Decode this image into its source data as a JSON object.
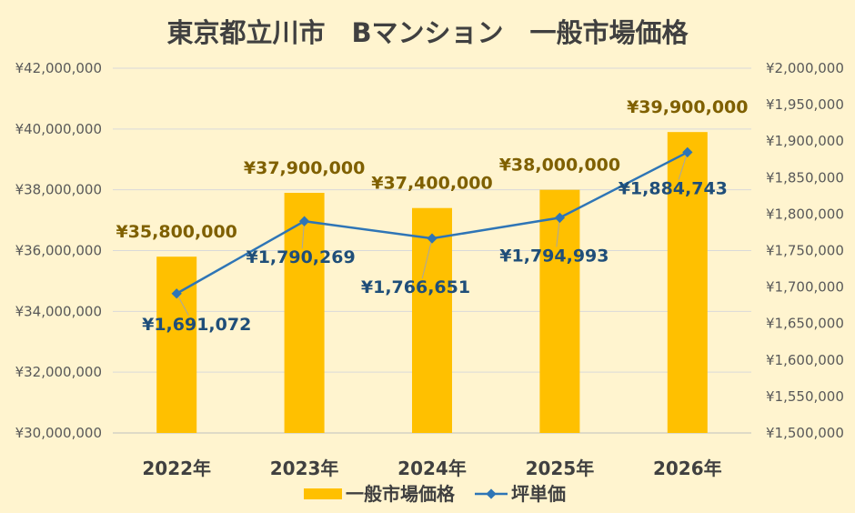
{
  "chart_data": {
    "type": "bar",
    "title": "東京都立川市　Bマンション　一般市場価格",
    "categories": [
      "2022年",
      "2023年",
      "2024年",
      "2025年",
      "2026年"
    ],
    "ylim": [
      30000000,
      42000000
    ],
    "y_ticks": [
      "¥30,000,000",
      "¥32,000,000",
      "¥34,000,000",
      "¥36,000,000",
      "¥38,000,000",
      "¥40,000,000",
      "¥42,000,000"
    ],
    "y2lim": [
      1500000,
      2000000
    ],
    "y2_ticks": [
      "¥1,500,000",
      "¥1,550,000",
      "¥1,600,000",
      "¥1,650,000",
      "¥1,700,000",
      "¥1,750,000",
      "¥1,800,000",
      "¥1,850,000",
      "¥1,900,000",
      "¥1,950,000",
      "¥2,000,000"
    ],
    "grid": true,
    "legend_position": "bottom",
    "series": [
      {
        "name": "一般市場価格",
        "type": "bar",
        "axis": "left",
        "color": "#ffc000",
        "values": [
          35800000,
          37900000,
          37400000,
          38000000,
          39900000
        ],
        "labels": [
          "¥35,800,000",
          "¥37,900,000",
          "¥37,400,000",
          "¥38,000,000",
          "¥39,900,000"
        ],
        "label_color": "#7f6000"
      },
      {
        "name": "坪単価",
        "type": "line",
        "axis": "right",
        "color": "#2e75b6",
        "values": [
          1691072,
          1790269,
          1766651,
          1794993,
          1884743
        ],
        "labels": [
          "¥1,691,072",
          "¥1,790,269",
          "¥1,766,651",
          "¥1,794,993",
          "¥1,884,743"
        ],
        "label_color": "#1f4e79"
      }
    ]
  }
}
